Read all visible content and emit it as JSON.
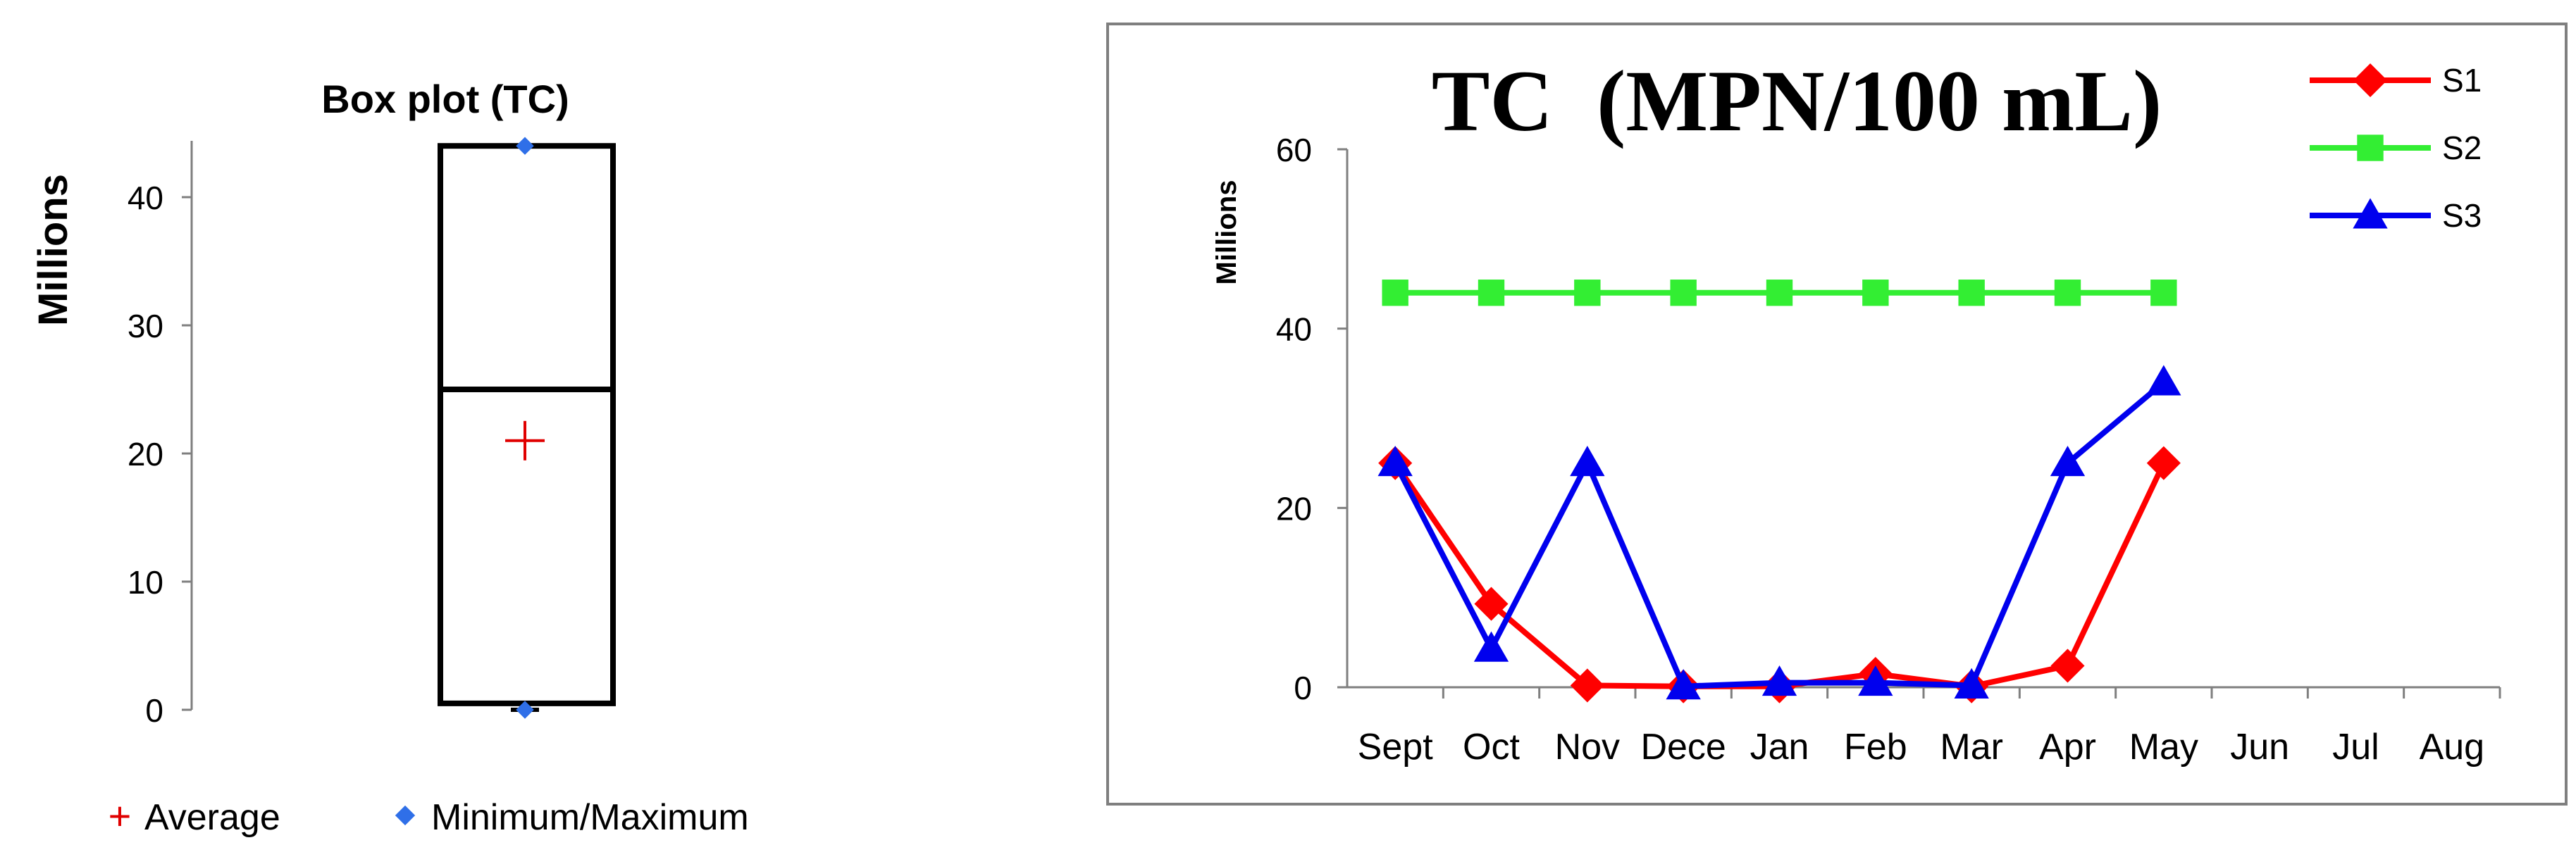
{
  "chart_data": [
    {
      "type": "box",
      "title": "Box plot (TC)",
      "ylabel": "Millions",
      "ylim": [
        0,
        45
      ],
      "yticks": [
        0,
        10,
        20,
        30,
        40
      ],
      "box": {
        "min": 0,
        "q1": 0.5,
        "median": 25,
        "q3": 44,
        "max": 44,
        "mean": 21
      },
      "legend": [
        {
          "label": "Average",
          "symbol": "+",
          "color": "#e00000"
        },
        {
          "label": "Minimum/Maximum",
          "symbol": "diamond",
          "color": "#2f6fe8"
        }
      ]
    },
    {
      "type": "line",
      "title": "TC  (MPN/100 mL)",
      "ylabel": "Millions",
      "ylim": [
        0,
        60
      ],
      "yticks": [
        0,
        20,
        40,
        60
      ],
      "categories": [
        "Sept",
        "Oct",
        "Nov",
        "Dece",
        "Jan",
        "Feb",
        "Mar",
        "Apr",
        "May",
        "Jun",
        "Jul",
        "Aug"
      ],
      "series": [
        {
          "name": "S1",
          "color": "#ff0000",
          "marker": "diamond",
          "values": [
            25,
            9.3,
            0.2,
            0.1,
            0.1,
            1.5,
            0.1,
            2.4,
            25,
            null,
            null,
            null
          ]
        },
        {
          "name": "S2",
          "color": "#33ee33",
          "marker": "square",
          "values": [
            44,
            44,
            44,
            44,
            44,
            44,
            44,
            44,
            44,
            null,
            null,
            null
          ]
        },
        {
          "name": "S3",
          "color": "#0000ee",
          "marker": "triangle",
          "values": [
            25,
            4.3,
            25,
            0.1,
            0.5,
            0.5,
            0.2,
            25,
            34,
            null,
            null,
            null
          ]
        }
      ],
      "legend_position": "top-right"
    }
  ]
}
